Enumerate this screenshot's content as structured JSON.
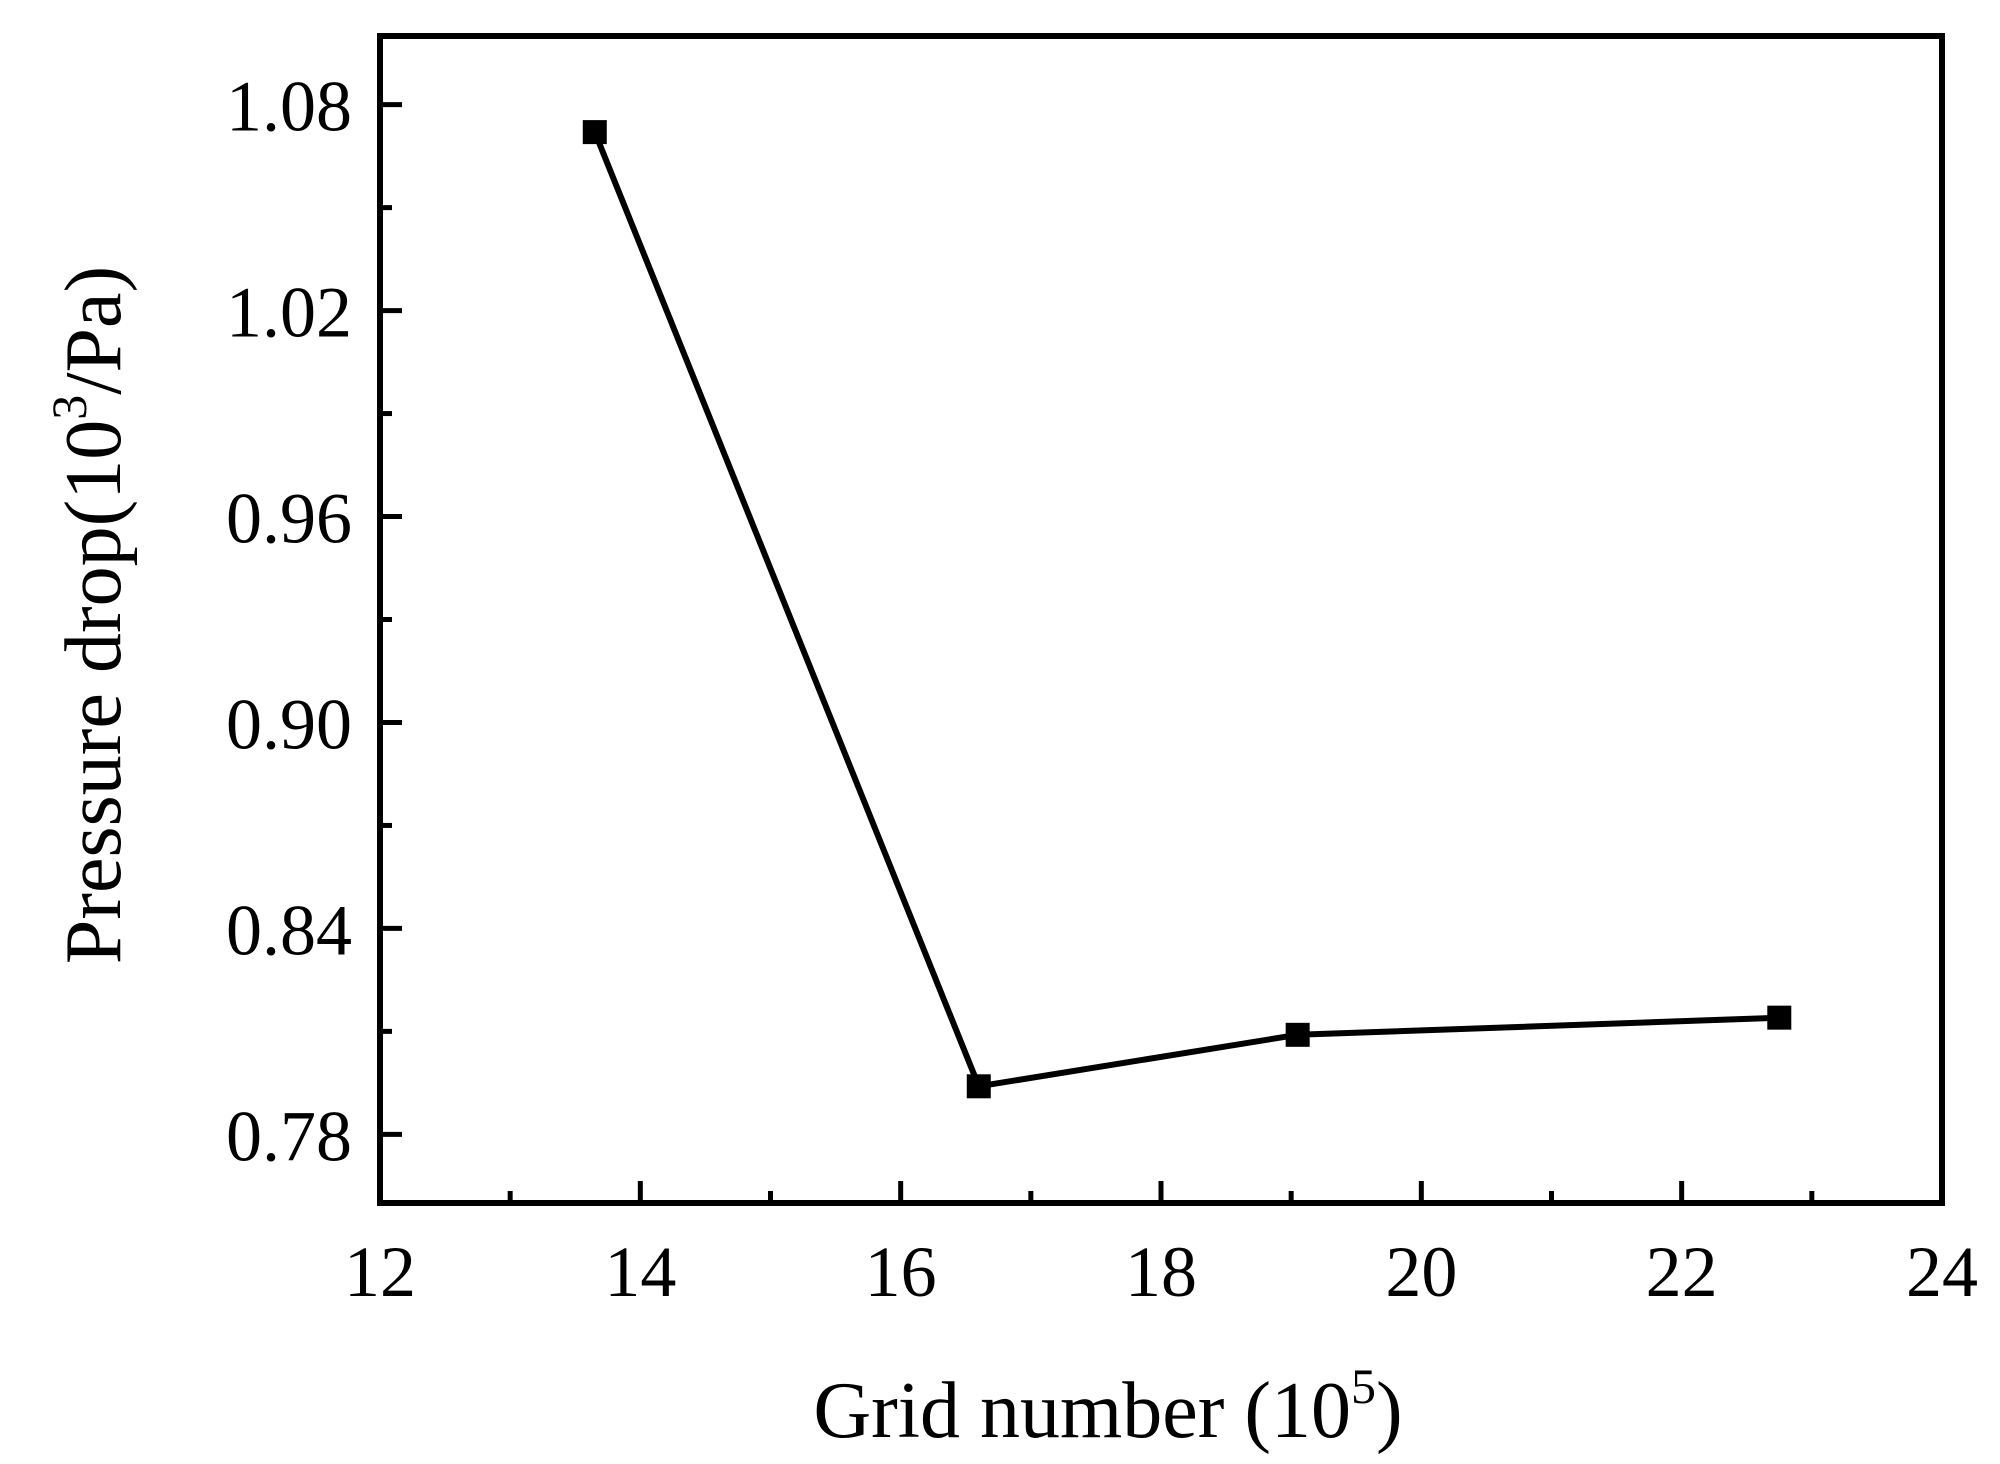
{
  "chart_data": {
    "type": "line",
    "xlabel": "Grid number (10",
    "xlabel_sup": "5",
    "xlabel_end": ")",
    "ylabel": "Pressure drop(10",
    "ylabel_sup": "3",
    "ylabel_end": "/Pa)",
    "xlim": [
      12,
      24
    ],
    "ylim": [
      0.76,
      1.1
    ],
    "xticks": [
      "12",
      "14",
      "16",
      "18",
      "20",
      "22",
      "24"
    ],
    "yticks": [
      "0.78",
      "0.84",
      "0.90",
      "0.96",
      "1.02",
      "1.08"
    ],
    "grid": false,
    "marker": "square",
    "color": "#000000",
    "series": [
      {
        "x": [
          13.65,
          16.6,
          19.05,
          22.75
        ],
        "y": [
          1.072,
          0.794,
          0.809,
          0.814
        ]
      }
    ]
  }
}
